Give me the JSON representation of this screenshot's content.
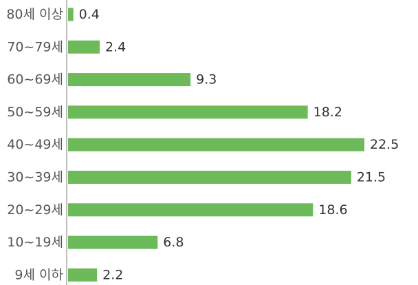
{
  "chart_data": {
    "type": "bar",
    "orientation": "horizontal",
    "title": "",
    "xlabel": "",
    "ylabel": "",
    "categories": [
      "80세 이상",
      "70~79세",
      "60~69세",
      "50~59세",
      "40~49세",
      "30~39세",
      "20~29세",
      "10~19세",
      "9세 이하"
    ],
    "values": [
      0.4,
      2.4,
      9.3,
      18.2,
      22.5,
      21.5,
      18.6,
      6.8,
      2.2
    ],
    "value_labels": [
      "0.4",
      "2.4",
      "9.3",
      "18.2",
      "22.5",
      "21.5",
      "18.6",
      "6.8",
      "2.2"
    ],
    "xlim": [
      0,
      22.5
    ],
    "grid": false,
    "legend": "none",
    "colors": {
      "bar": "#6cba5a",
      "axis": "#aaaaaa",
      "category_text": "#555555",
      "value_text": "#333333"
    }
  }
}
